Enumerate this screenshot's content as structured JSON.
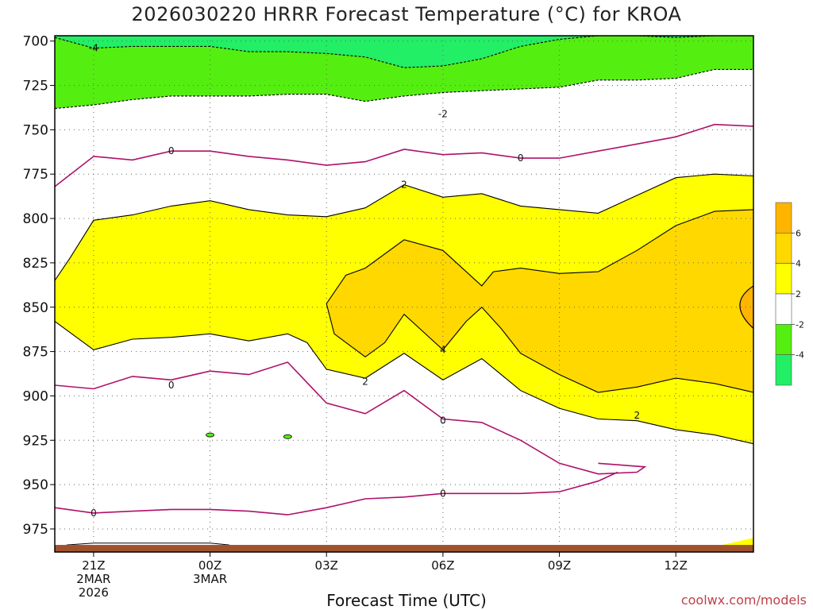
{
  "chart_data": {
    "type": "contour",
    "title": "2026030220 HRRR Forecast Temperature (°C) for KROA",
    "xlabel": "Forecast Time (UTC)",
    "ylabel": "",
    "credit": "coolwx.com/models",
    "y_ticks": [
      700,
      725,
      750,
      775,
      800,
      825,
      850,
      875,
      900,
      925,
      950,
      975
    ],
    "yrange_hPa": [
      697,
      988
    ],
    "y_ticks_text": [
      "700",
      "725",
      "750",
      "775",
      "800",
      "825",
      "850",
      "875",
      "900",
      "925",
      "950",
      "975"
    ],
    "x_ticks": [
      {
        "hour": -3,
        "lines": [
          "21Z",
          "2MAR",
          "2026"
        ]
      },
      {
        "hour": 0,
        "lines": [
          "00Z",
          "3MAR"
        ]
      },
      {
        "hour": 3,
        "lines": [
          "03Z"
        ]
      },
      {
        "hour": 6,
        "lines": [
          "06Z"
        ]
      },
      {
        "hour": 9,
        "lines": [
          "09Z"
        ]
      },
      {
        "hour": 12,
        "lines": [
          "12Z"
        ]
      }
    ],
    "xrange_hours": [
      -4,
      14
    ],
    "grid": true,
    "colorbar": {
      "placement": "right",
      "bands": [
        {
          "from": -6,
          "to": -4,
          "color": "#22ee66"
        },
        {
          "from": -4,
          "to": -2,
          "color": "#55ee11"
        },
        {
          "from": -2,
          "to": 2,
          "color": "#ffffff"
        },
        {
          "from": 2,
          "to": 4,
          "color": "#ffff00"
        },
        {
          "from": 4,
          "to": 6,
          "color": "#ffd800"
        },
        {
          "from": 6,
          "to": 8,
          "color": "#ffb400"
        }
      ],
      "tick_labels": [
        "6",
        "4",
        "2",
        "-2",
        "-4"
      ]
    },
    "contour_labels": [
      {
        "text": "-4",
        "hour": -3,
        "hPa": 704
      },
      {
        "text": "-2",
        "hour": 6,
        "hPa": 741
      },
      {
        "text": "0",
        "hour": -1,
        "hPa": 762
      },
      {
        "text": "0",
        "hour": 8,
        "hPa": 766
      },
      {
        "text": "2",
        "hour": 5,
        "hPa": 781
      },
      {
        "text": "4",
        "hour": 6,
        "hPa": 874
      },
      {
        "text": "2",
        "hour": 4,
        "hPa": 892
      },
      {
        "text": "0",
        "hour": -1,
        "hPa": 894
      },
      {
        "text": "2",
        "hour": 11,
        "hPa": 911
      },
      {
        "text": "0",
        "hour": 6,
        "hPa": 914
      },
      {
        "text": "0",
        "hour": 6,
        "hPa": 955
      },
      {
        "text": "0",
        "hour": -3,
        "hPa": 966
      }
    ],
    "contour_lines": [
      {
        "value": -2,
        "style": "dashed",
        "color": "#000000",
        "points": [
          [
            -4,
            738
          ],
          [
            -3,
            736
          ],
          [
            -2,
            733
          ],
          [
            -1,
            731
          ],
          [
            0,
            731
          ],
          [
            1,
            731
          ],
          [
            2,
            730
          ],
          [
            3,
            730
          ],
          [
            4,
            734
          ],
          [
            5,
            731
          ],
          [
            6,
            729
          ],
          [
            7,
            728
          ],
          [
            8,
            727
          ],
          [
            9,
            726
          ],
          [
            10,
            722
          ],
          [
            11,
            722
          ],
          [
            12,
            721
          ],
          [
            13,
            716
          ],
          [
            14,
            716
          ]
        ]
      },
      {
        "value": -4,
        "style": "dashed",
        "color": "#000000",
        "points": [
          [
            -4,
            698
          ],
          [
            -3,
            704
          ],
          [
            -2,
            703
          ],
          [
            -1,
            703
          ],
          [
            0,
            703
          ],
          [
            1,
            706
          ],
          [
            2,
            706
          ],
          [
            3,
            707
          ],
          [
            4,
            709
          ],
          [
            5,
            715
          ],
          [
            6,
            714
          ],
          [
            7,
            710
          ],
          [
            8,
            703
          ],
          [
            9,
            699
          ],
          [
            10,
            697
          ],
          [
            11,
            697
          ],
          [
            12,
            698
          ],
          [
            13,
            697
          ],
          [
            14,
            697
          ]
        ]
      },
      {
        "value": 0,
        "style": "solid",
        "color": "#b0106a",
        "points": [
          [
            -4,
            782
          ],
          [
            -3,
            765
          ],
          [
            -2,
            767
          ],
          [
            -1,
            762
          ],
          [
            0,
            762
          ],
          [
            1,
            765
          ],
          [
            2,
            767
          ],
          [
            3,
            770
          ],
          [
            4,
            768
          ],
          [
            5,
            761
          ],
          [
            6,
            764
          ],
          [
            7,
            763
          ],
          [
            8,
            766
          ],
          [
            9,
            766
          ],
          [
            10,
            762
          ],
          [
            11,
            758
          ],
          [
            12,
            754
          ],
          [
            13,
            747
          ],
          [
            14,
            748
          ]
        ]
      },
      {
        "value": 2,
        "style": "solid",
        "color": "#000000",
        "points": [
          [
            -4,
            835
          ],
          [
            -3.6,
            822
          ],
          [
            -3,
            801
          ],
          [
            -2,
            798
          ],
          [
            -1,
            793
          ],
          [
            0,
            790
          ],
          [
            1,
            795
          ],
          [
            2,
            798
          ],
          [
            3,
            799
          ],
          [
            4,
            794
          ],
          [
            5,
            781
          ],
          [
            6,
            788
          ],
          [
            7,
            786
          ],
          [
            8,
            793
          ],
          [
            9,
            795
          ],
          [
            10,
            797
          ],
          [
            11,
            787
          ],
          [
            12,
            777
          ],
          [
            13,
            775
          ],
          [
            14,
            776
          ]
        ]
      },
      {
        "value": 2,
        "style": "solid",
        "color": "#000000",
        "points": [
          [
            -4,
            858
          ],
          [
            -3,
            874
          ],
          [
            -2,
            868
          ],
          [
            -1,
            867
          ],
          [
            0,
            865
          ],
          [
            1,
            869
          ],
          [
            2,
            865
          ],
          [
            2.5,
            870
          ],
          [
            3,
            885
          ],
          [
            4,
            890
          ],
          [
            5,
            876
          ],
          [
            6,
            891
          ],
          [
            7,
            879
          ],
          [
            8,
            897
          ],
          [
            9,
            907
          ],
          [
            10,
            913
          ],
          [
            11,
            914
          ],
          [
            12,
            919
          ],
          [
            13,
            922
          ],
          [
            14,
            927
          ]
        ]
      },
      {
        "value": 4,
        "style": "solid",
        "color": "#000000",
        "points": [
          [
            3,
            848
          ],
          [
            3.5,
            832
          ],
          [
            4,
            828
          ],
          [
            5,
            812
          ],
          [
            6,
            818
          ],
          [
            7,
            838
          ],
          [
            7.3,
            830
          ],
          [
            8,
            828
          ],
          [
            9,
            831
          ],
          [
            10,
            830
          ],
          [
            11,
            818
          ],
          [
            12,
            804
          ],
          [
            13,
            796
          ],
          [
            14,
            795
          ]
        ]
      },
      {
        "value": 4,
        "style": "solid",
        "color": "#000000",
        "points": [
          [
            3,
            848
          ],
          [
            3.2,
            865
          ],
          [
            4,
            878
          ],
          [
            4.5,
            870
          ],
          [
            5,
            854
          ],
          [
            5.7,
            868
          ],
          [
            6,
            874
          ],
          [
            6.6,
            858
          ],
          [
            7,
            850
          ],
          [
            7.5,
            862
          ],
          [
            8,
            876
          ],
          [
            9,
            888
          ],
          [
            10,
            898
          ],
          [
            11,
            895
          ],
          [
            12,
            890
          ],
          [
            13,
            893
          ],
          [
            14,
            898
          ]
        ]
      },
      {
        "value": 0,
        "style": "solid",
        "color": "#b0106a",
        "points": [
          [
            -4,
            894
          ],
          [
            -3,
            896
          ],
          [
            -2,
            889
          ],
          [
            -1,
            891
          ],
          [
            0,
            886
          ],
          [
            1,
            888
          ],
          [
            2,
            881
          ],
          [
            3,
            904
          ],
          [
            4,
            910
          ],
          [
            5,
            897
          ],
          [
            6,
            913
          ],
          [
            7,
            915
          ],
          [
            8,
            925
          ],
          [
            9,
            938
          ],
          [
            10,
            944
          ],
          [
            11,
            943
          ],
          [
            11.2,
            940
          ],
          [
            10,
            938
          ]
        ]
      },
      {
        "value": 0,
        "style": "solid",
        "color": "#b0106a",
        "points": [
          [
            -4,
            963
          ],
          [
            -3,
            966
          ],
          [
            -2,
            965
          ],
          [
            -1,
            964
          ],
          [
            0,
            964
          ],
          [
            1,
            965
          ],
          [
            2,
            967
          ],
          [
            3,
            963
          ],
          [
            4,
            958
          ],
          [
            5,
            957
          ],
          [
            6,
            955
          ],
          [
            7,
            955
          ],
          [
            8,
            955
          ],
          [
            9,
            954
          ],
          [
            10,
            948
          ],
          [
            10.5,
            943
          ]
        ]
      }
    ],
    "filled_regions": [
      {
        "band": "4 to 6",
        "color": "#ffd800"
      },
      {
        "band": "2 to 4",
        "color": "#ffff00"
      },
      {
        "band": "-4 to -2",
        "color": "#55ee11"
      },
      {
        "band": "-6 to -4",
        "color": "#22ee66"
      },
      {
        "band": "ground",
        "color": "#a0522d"
      }
    ]
  }
}
